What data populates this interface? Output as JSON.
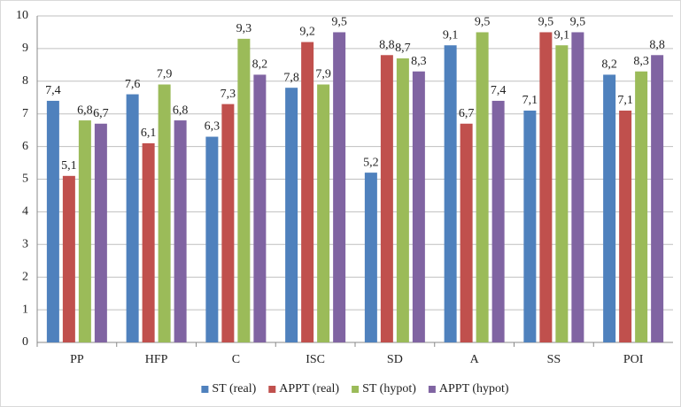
{
  "chart_data": {
    "type": "bar",
    "categories": [
      "PP",
      "HFP",
      "C",
      "ISC",
      "SD",
      "A",
      "SS",
      "POI"
    ],
    "series": [
      {
        "name": "ST (real)",
        "color": "#4f81bd",
        "values": [
          7.4,
          7.6,
          6.3,
          7.8,
          5.2,
          9.1,
          7.1,
          8.2
        ],
        "value_labels": [
          "7,4",
          "7,6",
          "6,3",
          "7,8",
          "5,2",
          "9,1",
          "7,1",
          "8,2"
        ]
      },
      {
        "name": "APPT (real)",
        "color": "#c0504d",
        "values": [
          5.1,
          6.1,
          7.3,
          9.2,
          8.8,
          6.7,
          9.5,
          7.1
        ],
        "value_labels": [
          "5,1",
          "6,1",
          "7,3",
          "9,2",
          "8,8",
          "6,7",
          "9,5",
          "7,1"
        ]
      },
      {
        "name": "ST (hypot)",
        "color": "#9bbb59",
        "values": [
          6.8,
          7.9,
          9.3,
          7.9,
          8.7,
          9.5,
          9.1,
          8.3
        ],
        "value_labels": [
          "6,8",
          "7,9",
          "9,3",
          "7,9",
          "8,7",
          "9,5",
          "9,1",
          "8,3"
        ]
      },
      {
        "name": "APPT (hypot)",
        "color": "#8064a2",
        "values": [
          6.7,
          6.8,
          8.2,
          9.5,
          8.3,
          7.4,
          9.5,
          8.8
        ],
        "value_labels": [
          "6,7",
          "6,8",
          "8,2",
          "9,5",
          "8,3",
          "7,4",
          "9,5",
          "8,8"
        ]
      }
    ],
    "ylim": [
      0,
      10
    ],
    "yticks": [
      0,
      1,
      2,
      3,
      4,
      5,
      6,
      7,
      8,
      9,
      10
    ],
    "grid": true,
    "legend": "bottom"
  }
}
